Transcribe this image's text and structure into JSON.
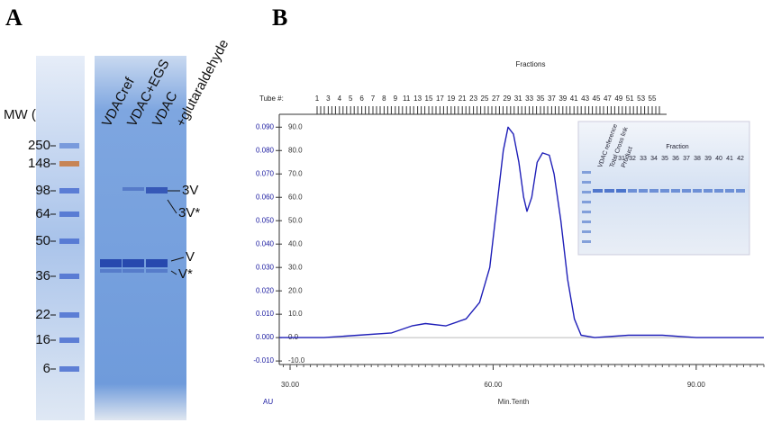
{
  "panel_a": {
    "label": "A",
    "mw_label": "MW (kDa)",
    "markers": [
      250,
      148,
      98,
      64,
      50,
      36,
      22,
      16,
      6
    ],
    "lanes": [
      "VDACref",
      "VDAC+EGS",
      "VDAC",
      "+glutaraldehyde"
    ],
    "bands": [
      "3V",
      "3V*",
      "V",
      "V*"
    ]
  },
  "chart_data": {
    "type": "line",
    "panel_label": "B",
    "title": "Fractions",
    "tube_label": "Tube #:",
    "tubes": [
      1,
      3,
      4,
      5,
      6,
      7,
      8,
      9,
      11,
      13,
      15,
      17,
      19,
      21,
      23,
      25,
      27,
      29,
      31,
      33,
      35,
      37,
      39,
      41,
      43,
      45,
      47,
      49,
      51,
      53,
      55
    ],
    "x_label": "Min.Tenth",
    "y_label": "AU",
    "color": "#1f1fb8",
    "x": [
      28.4,
      35,
      40,
      45,
      48,
      50,
      53,
      56,
      58,
      59.5,
      60.5,
      61.5,
      62.2,
      63,
      63.8,
      64.5,
      65,
      65.7,
      66.5,
      67.3,
      68.3,
      69,
      70,
      71,
      72,
      73,
      75,
      80,
      85,
      90,
      100
    ],
    "values": [
      0.0,
      0.0,
      0.001,
      0.002,
      0.005,
      0.006,
      0.005,
      0.008,
      0.015,
      0.03,
      0.055,
      0.08,
      0.09,
      0.087,
      0.075,
      0.06,
      0.054,
      0.06,
      0.075,
      0.079,
      0.078,
      0.07,
      0.05,
      0.025,
      0.008,
      0.001,
      0.0,
      0.001,
      0.001,
      0.0,
      0.0
    ],
    "xlim": [
      28.4,
      100
    ],
    "ylim": [
      -0.0115,
      0.0955
    ],
    "y2lim": [
      -11.5,
      95.5
    ],
    "xticks": [
      {
        "value": 30,
        "label": "30.00"
      },
      {
        "value": 60,
        "label": "60.00"
      },
      {
        "value": 90,
        "label": "90.00"
      }
    ],
    "yticks": [
      {
        "value": 0.09,
        "label": "0.090"
      },
      {
        "value": 0.08,
        "label": "0.080"
      },
      {
        "value": 0.07,
        "label": "0.070"
      },
      {
        "value": 0.06,
        "label": "0.060"
      },
      {
        "value": 0.05,
        "label": "0.050"
      },
      {
        "value": 0.04,
        "label": "0.040"
      },
      {
        "value": 0.03,
        "label": "0.030"
      },
      {
        "value": 0.02,
        "label": "0.020"
      },
      {
        "value": 0.01,
        "label": "0.010"
      },
      {
        "value": 0,
        "label": "0.000"
      },
      {
        "value": -0.01,
        "label": "-0.010"
      }
    ],
    "y2ticks": [
      {
        "value": 90,
        "label": "90.0"
      },
      {
        "value": 80,
        "label": "80.0"
      },
      {
        "value": 70,
        "label": "70.0"
      },
      {
        "value": 60,
        "label": "60.0"
      },
      {
        "value": 50,
        "label": "50.0"
      },
      {
        "value": 40,
        "label": "40.0"
      },
      {
        "value": 30,
        "label": "30.0"
      },
      {
        "value": 20,
        "label": "20.0"
      },
      {
        "value": 10,
        "label": "10.0"
      },
      {
        "value": 0,
        "label": "0.0"
      },
      {
        "value": -10,
        "label": "-10.0"
      }
    ],
    "inset": {
      "title": "Fraction",
      "lanes": [
        "VDAC reference",
        "Total Cross link",
        "Product"
      ],
      "fractions": [
        31,
        32,
        33,
        34,
        35,
        36,
        37,
        38,
        39,
        40,
        41,
        42
      ]
    }
  }
}
